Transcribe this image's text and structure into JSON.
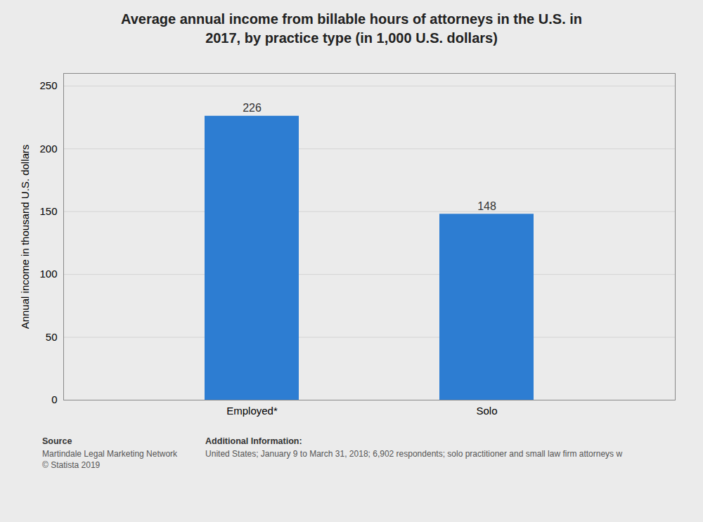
{
  "chart_data": {
    "type": "bar",
    "title": "Average annual income from billable hours of attorneys in the U.S. in\n2017, by practice type (in 1,000 U.S. dollars)",
    "categories": [
      "Employed*",
      "Solo"
    ],
    "values": [
      226,
      148
    ],
    "color": "#2d7dd2",
    "ylabel": "Annual income in thousand U.S. dollars",
    "ylim": [
      0,
      260
    ],
    "yticks": [
      0,
      50,
      100,
      150,
      200,
      250
    ],
    "grid": true,
    "data_labels": true,
    "annotations": [
      "Source",
      "Martindale Legal Marketing Network\n© Statista 2019",
      "Additional Information:",
      "United States; January 9 to March 31, 2018; 6,902 respondents; solo practitioner and small law firm attorneys w"
    ]
  }
}
